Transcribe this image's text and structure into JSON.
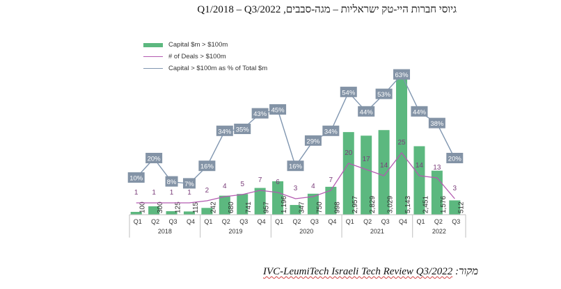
{
  "title": "גיוסי חברות היי-טק ישראליות – מגה-סבבים, Q1/2018 – Q3/2022",
  "source": {
    "prefix": "מקור: ",
    "text": "IVC-LeumiTech Israeli Tech Review Q3/2022"
  },
  "colors": {
    "bars": "#5cb87f",
    "deals": "#b35ab0",
    "percent": "#8096b0",
    "percent_label_bg": "#8393a6"
  },
  "chart_data": {
    "type": "bar",
    "title": "גיוסי חברות היי-טק ישראליות – מגה-סבבים, Q1/2018 – Q3/2022",
    "xlabel": "",
    "ylabel": "",
    "legend_position": "top-left",
    "grid": false,
    "categories": [
      "Q1",
      "Q2",
      "Q3",
      "Q4",
      "Q1",
      "Q2",
      "Q3",
      "Q4",
      "Q1",
      "Q2",
      "Q3",
      "Q4",
      "Q1",
      "Q2",
      "Q3",
      "Q4",
      "Q1",
      "Q2",
      "Q3"
    ],
    "years": [
      {
        "label": "2018",
        "count": 4
      },
      {
        "label": "2019",
        "count": 4
      },
      {
        "label": "2020",
        "count": 4
      },
      {
        "label": "2021",
        "count": 4
      },
      {
        "label": "2022",
        "count": 3
      }
    ],
    "series": [
      {
        "name": "Capital $m > $100m",
        "type": "bar",
        "values": [
          100,
          300,
          125,
          115,
          242,
          680,
          741,
          957,
          1196,
          347,
          750,
          998,
          2957,
          2829,
          3029,
          5143,
          2451,
          1576,
          512
        ],
        "labels": [
          "100",
          "300",
          "125",
          "115",
          "242",
          "680",
          "741",
          "957",
          "1,196",
          "347",
          "750",
          "998",
          "2,957",
          "2,829",
          "3,029",
          "5,143",
          "2,451",
          "1,576",
          "512"
        ]
      },
      {
        "name": "# of Deals > $100m",
        "type": "line",
        "values": [
          1,
          1,
          1,
          1,
          2,
          4,
          5,
          7,
          6,
          3,
          4,
          7,
          20,
          17,
          14,
          25,
          14,
          13,
          3
        ]
      },
      {
        "name": "Capital > $100m as % of Total $m",
        "type": "line",
        "values": [
          10,
          20,
          8,
          7,
          16,
          34,
          35,
          43,
          45,
          16,
          29,
          34,
          54,
          44,
          53,
          63,
          44,
          38,
          20
        ],
        "labels": [
          "10%",
          "20%",
          "8%",
          "7%",
          "16%",
          "34%",
          "35%",
          "43%",
          "45%",
          "16%",
          "29%",
          "34%",
          "54%",
          "44%",
          "53%",
          "63%",
          "44%",
          "38%",
          "20%"
        ]
      }
    ],
    "ylim_capital": [
      0,
      5143
    ],
    "ylim_percent": [
      0,
      63
    ]
  }
}
